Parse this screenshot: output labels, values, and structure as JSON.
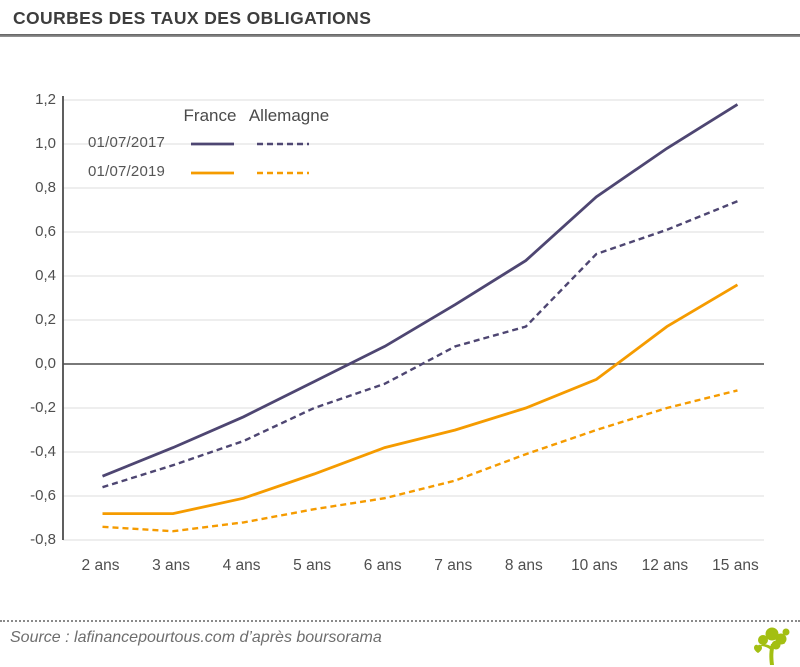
{
  "header": {
    "title": "COURBES DES TAUX DES OBLIGATIONS"
  },
  "legend": {
    "col_france": "France",
    "col_allemagne": "Allemagne",
    "row_2017": "01/07/2017",
    "row_2019": "01/07/2019"
  },
  "footer": {
    "source": "Source : lafinancepourtous.com d’après boursorama"
  },
  "colors": {
    "purple": "#4e4672",
    "orange": "#F59B00",
    "grid": "#e3e3e3",
    "zero_line": "#4d4d4d",
    "axis": "#4d4d4d",
    "title_text": "#3d3d3d",
    "label_text": "#4f4f4f",
    "logo_green": "#a3bf12"
  },
  "chart_data": {
    "type": "line",
    "title": "COURBES DES TAUX DES OBLIGATIONS",
    "xlabel": "",
    "ylabel": "",
    "categories": [
      "2 ans",
      "3 ans",
      "4 ans",
      "5 ans",
      "6 ans",
      "7 ans",
      "8 ans",
      "10 ans",
      "12 ans",
      "15 ans"
    ],
    "y_ticks": [
      1.2,
      1.0,
      0.8,
      0.6,
      0.4,
      0.2,
      0.0,
      -0.2,
      -0.4,
      -0.6,
      -0.8
    ],
    "y_tick_labels": [
      "1,2",
      "1,0",
      "0,8",
      "0,6",
      "0,4",
      "0,2",
      "0,0",
      "-0,2",
      "-0,4",
      "-0,6",
      "-0,8"
    ],
    "ylim": [
      -0.8,
      1.2
    ],
    "grid": true,
    "zero_line": true,
    "legend_position": "top-left-inside",
    "series": [
      {
        "name": "France 01/07/2017",
        "slug": "france-2017",
        "color": "purple",
        "dash": "solid",
        "values": [
          -0.51,
          -0.38,
          -0.24,
          -0.08,
          0.08,
          0.27,
          0.47,
          0.76,
          0.98,
          1.18
        ]
      },
      {
        "name": "Allemagne 01/07/2017",
        "slug": "allemagne-2017",
        "color": "purple",
        "dash": "dashed",
        "values": [
          -0.56,
          -0.46,
          -0.35,
          -0.2,
          -0.09,
          0.08,
          0.17,
          0.5,
          0.61,
          0.74
        ]
      },
      {
        "name": "France 01/07/2019",
        "slug": "france-2019",
        "color": "orange",
        "dash": "solid",
        "values": [
          -0.68,
          -0.68,
          -0.61,
          -0.5,
          -0.38,
          -0.3,
          -0.2,
          -0.07,
          0.17,
          0.36
        ]
      },
      {
        "name": "Allemagne 01/07/2019",
        "slug": "allemagne-2019",
        "color": "orange",
        "dash": "dashed",
        "values": [
          -0.74,
          -0.76,
          -0.72,
          -0.66,
          -0.61,
          -0.53,
          -0.41,
          -0.3,
          -0.2,
          -0.12
        ]
      }
    ]
  }
}
